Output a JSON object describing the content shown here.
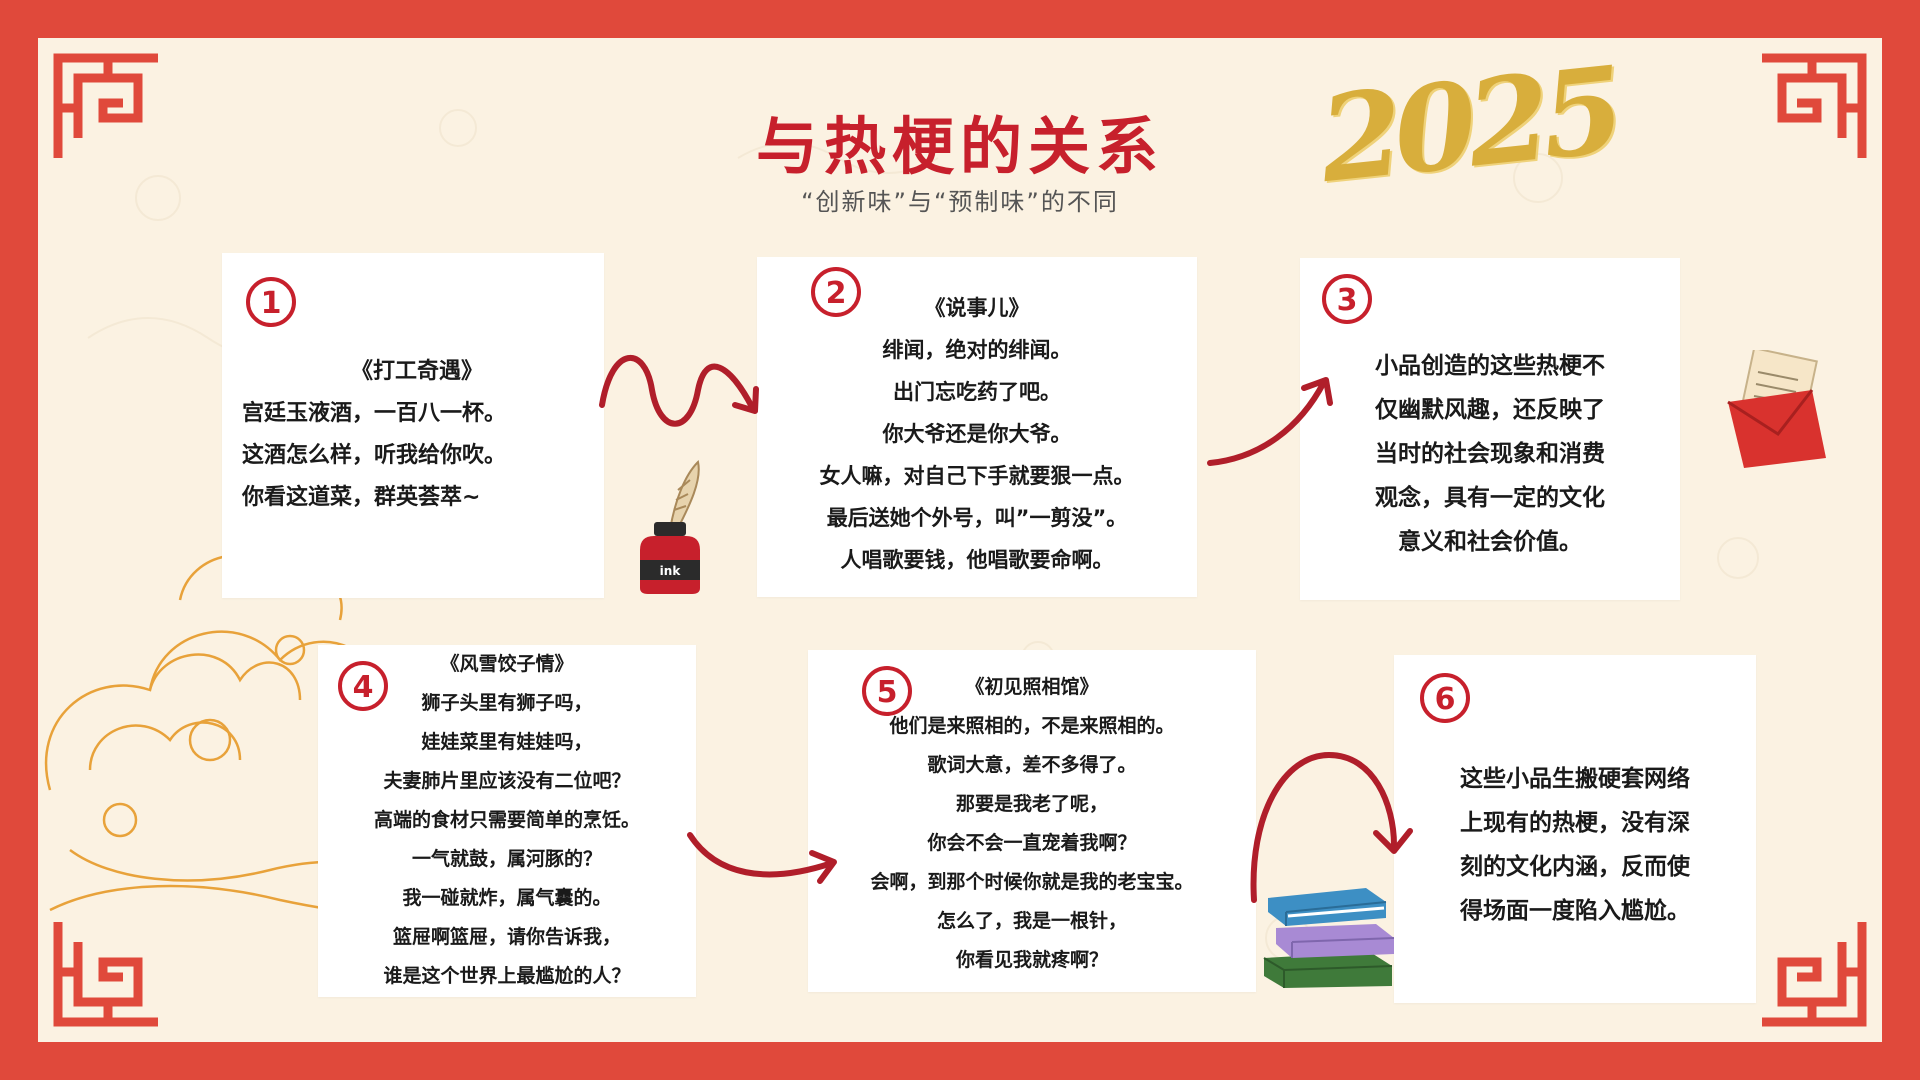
{
  "title": "与热梗的关系",
  "subtitle": "“创新味”与“预制味”的不同",
  "year_badge": "2025",
  "ink_label": "ink",
  "colors": {
    "frame": "#e0493b",
    "accent": "#c7202c",
    "paper": "#fbf2e2",
    "gold": "#d8ae3c"
  },
  "cards": [
    {
      "number": "1",
      "lines": [
        "《打工奇遇》",
        "宫廷玉液酒，一百八一杯。",
        "这酒怎么样，听我给你吹。",
        "你看这道菜，群英荟萃~"
      ]
    },
    {
      "number": "2",
      "lines": [
        "《说事儿》",
        "绯闻，绝对的绯闻。",
        "出门忘吃药了吧。",
        "你大爷还是你大爷。",
        "女人嘛，对自己下手就要狠一点。",
        "最后送她个外号，叫”一剪没”。",
        "人唱歌要钱，他唱歌要命啊。"
      ]
    },
    {
      "number": "3",
      "lines": [
        "小品创造的这些热梗不",
        "仅幽默风趣，还反映了",
        "当时的社会现象和消费",
        "观念，具有一定的文化",
        "意义和社会价值。"
      ]
    },
    {
      "number": "4",
      "lines": [
        "《风雪饺子情》",
        "狮子头里有狮子吗，",
        "娃娃菜里有娃娃吗，",
        "夫妻肺片里应该没有二位吧？",
        "高端的食材只需要简单的烹饪。",
        "一气就鼓，属河豚的？",
        "我一碰就炸，属气囊的。",
        "篮屉啊篮屉，请你告诉我，",
        "谁是这个世界上最尴尬的人？"
      ]
    },
    {
      "number": "5",
      "lines": [
        "《初见照相馆》",
        "他们是来照相的，不是来照相的。",
        "歌词大意，差不多得了。",
        "那要是我老了呢，",
        "你会不会一直宠着我啊？",
        "会啊，到那个时候你就是我的老宝宝。",
        "怎么了，我是一根针，",
        "你看见我就疼啊？"
      ]
    },
    {
      "number": "6",
      "lines": [
        "这些小品生搬硬套网络",
        "上现有的热梗，没有深",
        "刻的文化内涵，反而使",
        "得场面一度陷入尴尬。"
      ]
    }
  ]
}
